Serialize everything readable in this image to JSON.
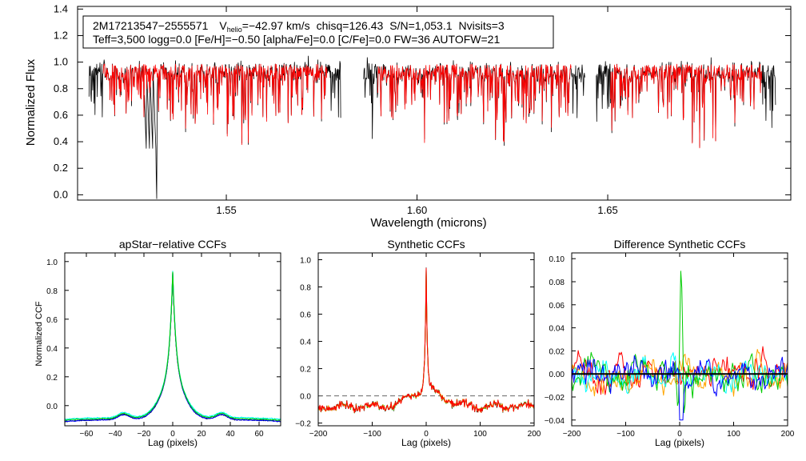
{
  "chart_data": [
    {
      "type": "line",
      "name": "spectrum",
      "info_line1": {
        "star": "2M17213547−2555571",
        "v_main": "V",
        "v_sub": "helio",
        "v_rest": "=−42.97 km/s",
        "chisq": "chisq=126.43",
        "snr": "S/N=1,053.1",
        "nvisits": "Nvisits=3"
      },
      "info_line2": "Teff=3,500 logg=0.0 [Fe/H]=−0.50 [alpha/Fe]=0.0 [C/Fe]=0.0 FW=36 AUTOFW=21",
      "xlabel": "Wavelength (microns)",
      "ylabel": "Normalized Flux",
      "xlim": [
        1.511,
        1.698
      ],
      "ylim": [
        -0.04,
        1.42
      ],
      "xticks": [
        1.55,
        1.6,
        1.65
      ],
      "xtick_labels": [
        "1.55",
        "1.60",
        "1.65"
      ],
      "yticks": [
        0.0,
        0.2,
        0.4,
        0.6,
        0.8,
        1.0,
        1.2,
        1.4
      ],
      "ytick_labels": [
        "0.0",
        "0.2",
        "0.4",
        "0.6",
        "0.8",
        "1.0",
        "1.2",
        "1.4"
      ],
      "chips": [
        [
          1.514,
          1.58
        ],
        [
          1.586,
          1.644
        ],
        [
          1.647,
          1.694
        ]
      ],
      "series": [
        {
          "name": "observed",
          "color": "#000000"
        },
        {
          "name": "model",
          "color": "#ff0000"
        }
      ]
    },
    {
      "type": "line",
      "name": "apstar-ccf",
      "title": "apStar−relative CCFs",
      "xlabel": "Lag (pixels)",
      "ylabel": "Normalized CCF",
      "xlim": [
        -75,
        75
      ],
      "ylim": [
        -0.14,
        1.06
      ],
      "xticks": [
        -60,
        -40,
        -20,
        0,
        20,
        40,
        60
      ],
      "xtick_labels": [
        "−60",
        "−40",
        "−20",
        "0",
        "20",
        "40",
        "60"
      ],
      "yticks": [
        0.0,
        0.2,
        0.4,
        0.6,
        0.8,
        1.0
      ],
      "ytick_labels": [
        "0.0",
        "0.2",
        "0.4",
        "0.6",
        "0.8",
        "1.0"
      ],
      "series": [
        {
          "name": "combined",
          "color": "#000000"
        },
        {
          "name": "visit-1",
          "color": "#0000ff"
        },
        {
          "name": "visit-2",
          "color": "#00ffff"
        },
        {
          "name": "visit-3",
          "color": "#00cc00"
        }
      ]
    },
    {
      "type": "line",
      "name": "synthetic-ccf",
      "title": "Synthetic CCFs",
      "xlabel": "Lag (pixels)",
      "xlim": [
        -200,
        200
      ],
      "ylim": [
        -0.22,
        1.05
      ],
      "xticks": [
        -200,
        -100,
        0,
        100,
        200
      ],
      "xtick_labels": [
        "−200",
        "−100",
        "0",
        "100",
        "200"
      ],
      "yticks": [
        -0.2,
        0.0,
        0.2,
        0.4,
        0.6,
        0.8,
        1.0
      ],
      "ytick_labels": [
        "−0.2",
        "0.0",
        "0.2",
        "0.4",
        "0.6",
        "0.8",
        "1.0"
      ],
      "reference_line": 0.0,
      "series": [
        {
          "name": "combined",
          "color": "#000000"
        },
        {
          "name": "visit-1",
          "color": "#00cc00"
        },
        {
          "name": "visit-2",
          "color": "#ffa500"
        },
        {
          "name": "visit-3",
          "color": "#ff0000"
        }
      ]
    },
    {
      "type": "line",
      "name": "difference-ccf",
      "title": "Difference Synthetic CCFs",
      "xlabel": "Lag (pixels)",
      "xlim": [
        -200,
        200
      ],
      "ylim": [
        -0.045,
        0.105
      ],
      "xticks": [
        -200,
        -100,
        0,
        100,
        200
      ],
      "xtick_labels": [
        "−200",
        "−100",
        "0",
        "100",
        "200"
      ],
      "yticks": [
        -0.04,
        -0.02,
        0.0,
        0.02,
        0.04,
        0.06,
        0.08,
        0.1
      ],
      "ytick_labels": [
        "−0.04",
        "−0.02",
        "0.00",
        "0.02",
        "0.04",
        "0.06",
        "0.08",
        "0.10"
      ],
      "reference_line": 0.0,
      "series": [
        {
          "name": "visit-a",
          "color": "#ff0000"
        },
        {
          "name": "visit-b",
          "color": "#ffa500"
        },
        {
          "name": "visit-c",
          "color": "#00ffff"
        },
        {
          "name": "visit-d",
          "color": "#00cc00"
        },
        {
          "name": "visit-e",
          "color": "#0000ff"
        }
      ]
    }
  ]
}
